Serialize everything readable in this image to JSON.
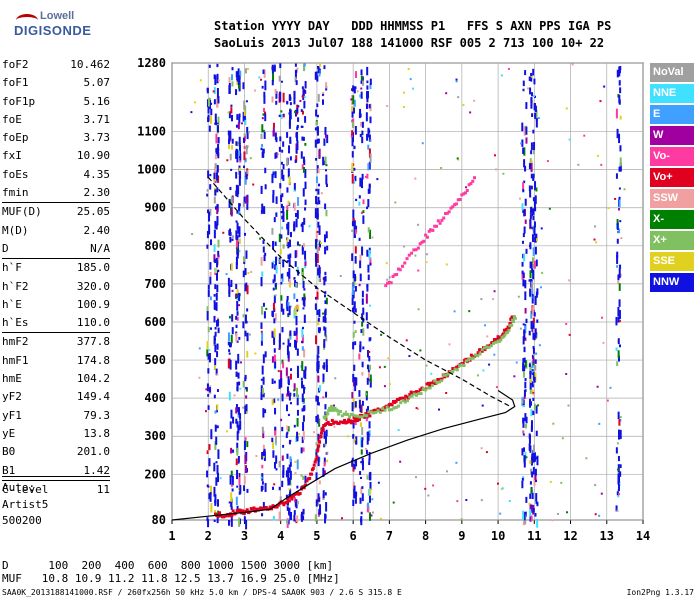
{
  "logo": {
    "line1": "Lowell",
    "line2": "DIGISONDE"
  },
  "header": {
    "line1": "Station YYYY DAY   DDD HHMMSS P1   FFS S AXN PPS IGA PS",
    "line2": "SaoLuis 2013 Jul07 188 141000 RSF 005 2 713 100 10+ 22"
  },
  "params": [
    {
      "k": "foF2",
      "v": "10.462"
    },
    {
      "k": "foF1",
      "v": "5.07"
    },
    {
      "k": "foF1p",
      "v": "5.16"
    },
    {
      "k": "foE",
      "v": "3.71"
    },
    {
      "k": "foEp",
      "v": "3.73"
    },
    {
      "k": "fxI",
      "v": "10.90"
    },
    {
      "k": "foEs",
      "v": "4.35"
    },
    {
      "k": "fmin",
      "v": "2.30"
    },
    {
      "sep": true
    },
    {
      "k": "MUF(D)",
      "v": "25.05"
    },
    {
      "k": "M(D)",
      "v": "2.40"
    },
    {
      "k": "D",
      "v": "N/A"
    },
    {
      "sep": true
    },
    {
      "k": "h`F",
      "v": "185.0"
    },
    {
      "k": "h`F2",
      "v": "320.0"
    },
    {
      "k": "h`E",
      "v": "100.9"
    },
    {
      "k": "h`Es",
      "v": "110.0"
    },
    {
      "sep": true
    },
    {
      "k": "hmF2",
      "v": "377.8"
    },
    {
      "k": "hmF1",
      "v": "174.8"
    },
    {
      "k": "hmE",
      "v": "104.2"
    },
    {
      "k": "yF2",
      "v": "149.4"
    },
    {
      "k": "yF1",
      "v": "79.3"
    },
    {
      "k": "yE",
      "v": "13.8"
    },
    {
      "k": "B0",
      "v": "201.0"
    },
    {
      "k": "B1",
      "v": "1.42"
    },
    {
      "sep": true
    },
    {
      "k": "C-level",
      "v": "11"
    }
  ],
  "auto": [
    "Auto:",
    "Artist5",
    "500200"
  ],
  "legend": [
    {
      "label": "NoVal",
      "color": "#a0a0a0"
    },
    {
      "label": "NNE",
      "color": "#40e0ff"
    },
    {
      "label": "E",
      "color": "#3fa0ff"
    },
    {
      "label": "W",
      "color": "#a000a0"
    },
    {
      "label": "Vo-",
      "color": "#ff3aa0"
    },
    {
      "label": "Vo+",
      "color": "#e00020"
    },
    {
      "label": "SSW",
      "color": "#f0a0a0"
    },
    {
      "label": "X-",
      "color": "#008000"
    },
    {
      "label": "X+",
      "color": "#80c060"
    },
    {
      "label": "SSE",
      "color": "#e0d020"
    },
    {
      "label": "NNW",
      "color": "#1010e0"
    }
  ],
  "bottom": {
    "line1": "D      100  200  400  600  800 1000 1500 3000 [km]",
    "line2": "MUF   10.8 10.9 11.2 11.8 12.5 13.7 16.9 25.0 [MHz]"
  },
  "footer": {
    "left": "SAA0K_2013188141000.RSF / 260fx256h 50 kHz 5.0 km / DPS-4 SAA0K 903 / 2.6 S 315.8 E",
    "right": "Ion2Png 1.3.17"
  },
  "chart_data": {
    "type": "scatter",
    "title": "",
    "xlabel": "",
    "ylabel": "",
    "xlim": [
      1,
      14
    ],
    "ylim": [
      80,
      1280
    ],
    "x_ticks": [
      1,
      2,
      3,
      4,
      5,
      6,
      7,
      8,
      9,
      10,
      11,
      12,
      13,
      14
    ],
    "y_ticks": [
      80,
      200,
      300,
      400,
      500,
      600,
      700,
      800,
      900,
      1000,
      1100,
      1280
    ],
    "series": [
      {
        "name": "Vo+",
        "color": "#e00020",
        "x": [
          2.2,
          2.5,
          2.8,
          3.0,
          3.3,
          3.6,
          3.9,
          4.2,
          4.5,
          4.8,
          5.0,
          5.1,
          5.2,
          5.5,
          5.8,
          6.0,
          6.2,
          6.5,
          6.8,
          7.0,
          7.3,
          7.6,
          8.0,
          8.3,
          8.6,
          9.0,
          9.3,
          9.6,
          9.9,
          10.1,
          10.3,
          10.4
        ],
        "y": [
          92,
          95,
          100,
          103,
          108,
          112,
          118,
          130,
          150,
          190,
          250,
          300,
          330,
          338,
          336,
          342,
          350,
          360,
          372,
          380,
          395,
          410,
          430,
          445,
          462,
          490,
          510,
          530,
          550,
          565,
          585,
          620
        ]
      },
      {
        "name": "X+",
        "color": "#80c060",
        "x": [
          5.2,
          5.4,
          5.6,
          6.0,
          6.5,
          7.0,
          7.5,
          8.0,
          8.5,
          9.0,
          9.5,
          10.0,
          10.3,
          10.5
        ],
        "y": [
          345,
          375,
          360,
          352,
          360,
          372,
          395,
          425,
          455,
          485,
          520,
          550,
          580,
          620
        ]
      },
      {
        "name": "Vo-",
        "color": "#ff3aa0",
        "x": [
          6.9,
          7.3,
          7.8,
          8.2,
          8.6,
          9.0,
          9.4
        ],
        "y": [
          690,
          740,
          800,
          845,
          885,
          930,
          980
        ]
      }
    ],
    "profiles": [
      {
        "name": "N(h) profile",
        "style": "solid",
        "x": [
          1.0,
          2.0,
          3.0,
          3.7,
          4.2,
          4.8,
          5.5,
          6.5,
          7.5,
          8.5,
          9.5,
          10.2,
          10.46,
          10.4,
          10.0
        ],
        "y": [
          80,
          90,
          100,
          108,
          140,
          175,
          215,
          255,
          290,
          320,
          345,
          362,
          378,
          395,
          420
        ]
      },
      {
        "name": "model",
        "style": "dashed",
        "x": [
          2.0,
          3.0,
          4.0,
          5.0,
          6.0,
          7.0,
          8.0,
          9.0,
          9.8,
          10.3
        ],
        "y": [
          980,
          870,
          770,
          690,
          625,
          560,
          500,
          450,
          405,
          380
        ]
      }
    ],
    "vertical_bands": [
      2.0,
      2.2,
      2.6,
      2.8,
      3.0,
      3.5,
      3.8,
      4.0,
      4.2,
      4.4,
      4.6,
      5.0,
      5.2,
      6.0,
      6.2,
      6.4,
      10.7,
      10.9,
      11.0,
      13.3
    ]
  }
}
